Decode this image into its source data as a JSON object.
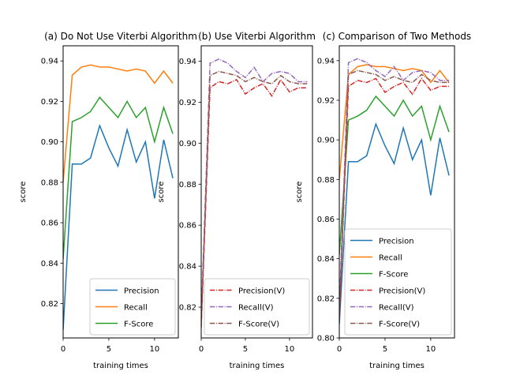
{
  "chart_data": [
    {
      "type": "line",
      "title": "(a) Do Not Use Viterbi Algorithm",
      "xlabel": "training times",
      "ylabel": "score",
      "xlim": [
        0,
        12.6
      ],
      "ylim": [
        0.803,
        0.9475
      ],
      "xticks": [
        0,
        5,
        10
      ],
      "yticks": [
        0.82,
        0.84,
        0.86,
        0.88,
        0.9,
        0.92,
        0.94
      ],
      "yticklabels": [
        "0.82",
        "0.84",
        "0.86",
        "0.88",
        "0.90",
        "0.92",
        "0.94"
      ],
      "legend": "lower-right",
      "x": [
        0,
        1,
        2,
        3,
        4,
        5,
        6,
        7,
        8,
        9,
        10,
        11,
        12
      ],
      "series": [
        {
          "name": "Precision",
          "color": "#1f77b4",
          "dash": "solid",
          "values": [
            0.807,
            0.889,
            0.889,
            0.892,
            0.908,
            0.897,
            0.888,
            0.906,
            0.89,
            0.9,
            0.872,
            0.901,
            0.882
          ]
        },
        {
          "name": "Recall",
          "color": "#ff7f0e",
          "dash": "solid",
          "values": [
            0.88,
            0.933,
            0.937,
            0.938,
            0.937,
            0.937,
            0.936,
            0.935,
            0.936,
            0.935,
            0.929,
            0.935,
            0.929
          ]
        },
        {
          "name": "F-Score",
          "color": "#2ca02c",
          "dash": "solid",
          "values": [
            0.842,
            0.91,
            0.912,
            0.915,
            0.922,
            0.917,
            0.912,
            0.92,
            0.912,
            0.917,
            0.9,
            0.917,
            0.904
          ]
        }
      ]
    },
    {
      "type": "line",
      "title": "(b) Use Viterbi Algorithm",
      "xlabel": "training times",
      "ylabel": "score",
      "xlim": [
        0,
        12.6
      ],
      "ylim": [
        0.805,
        0.9475
      ],
      "xticks": [
        0,
        5,
        10
      ],
      "yticks": [
        0.82,
        0.84,
        0.86,
        0.88,
        0.9,
        0.92,
        0.94
      ],
      "yticklabels": [
        "0.82",
        "0.84",
        "0.86",
        "0.88",
        "0.90",
        "0.92",
        "0.94"
      ],
      "legend": "lower-right",
      "x": [
        0,
        1,
        2,
        3,
        4,
        5,
        6,
        7,
        8,
        9,
        10,
        11,
        12
      ],
      "series": [
        {
          "name": "Precision(V)",
          "color": "#d62728",
          "dash": "dashdot",
          "values": [
            0.81,
            0.927,
            0.93,
            0.929,
            0.931,
            0.924,
            0.927,
            0.929,
            0.923,
            0.931,
            0.925,
            0.927,
            0.927
          ]
        },
        {
          "name": "Recall(V)",
          "color": "#9467bd",
          "dash": "dashdot",
          "values": [
            0.815,
            0.939,
            0.941,
            0.939,
            0.935,
            0.932,
            0.937,
            0.93,
            0.934,
            0.935,
            0.934,
            0.93,
            0.93
          ]
        },
        {
          "name": "F-Score(V)",
          "color": "#8c564b",
          "dash": "dashdot",
          "values": [
            0.812,
            0.933,
            0.935,
            0.934,
            0.933,
            0.93,
            0.932,
            0.93,
            0.929,
            0.933,
            0.93,
            0.929,
            0.929
          ]
        }
      ]
    },
    {
      "type": "line",
      "title": "(c) Comparison of Two Methods",
      "xlabel": "training times",
      "ylabel": "score",
      "xlim": [
        0,
        12.6
      ],
      "ylim": [
        0.8,
        0.9475
      ],
      "xticks": [
        0,
        5,
        10
      ],
      "yticks": [
        0.8,
        0.82,
        0.84,
        0.86,
        0.88,
        0.9,
        0.92,
        0.94
      ],
      "yticklabels": [
        "0.80",
        "0.82",
        "0.84",
        "0.86",
        "0.88",
        "0.90",
        "0.92",
        "0.94"
      ],
      "legend": "lower-right",
      "x": [
        0,
        1,
        2,
        3,
        4,
        5,
        6,
        7,
        8,
        9,
        10,
        11,
        12
      ],
      "series": [
        {
          "name": "Precision",
          "color": "#1f77b4",
          "dash": "solid",
          "values": [
            0.807,
            0.889,
            0.889,
            0.892,
            0.908,
            0.897,
            0.888,
            0.906,
            0.89,
            0.9,
            0.872,
            0.901,
            0.882
          ]
        },
        {
          "name": "Recall",
          "color": "#ff7f0e",
          "dash": "solid",
          "values": [
            0.88,
            0.933,
            0.937,
            0.938,
            0.937,
            0.937,
            0.936,
            0.935,
            0.936,
            0.935,
            0.929,
            0.935,
            0.929
          ]
        },
        {
          "name": "F-Score",
          "color": "#2ca02c",
          "dash": "solid",
          "values": [
            0.842,
            0.91,
            0.912,
            0.915,
            0.922,
            0.917,
            0.912,
            0.92,
            0.912,
            0.917,
            0.9,
            0.917,
            0.904
          ]
        },
        {
          "name": "Precision(V)",
          "color": "#d62728",
          "dash": "dashdot",
          "values": [
            0.81,
            0.927,
            0.93,
            0.929,
            0.931,
            0.924,
            0.927,
            0.929,
            0.923,
            0.931,
            0.925,
            0.927,
            0.927
          ]
        },
        {
          "name": "Recall(V)",
          "color": "#9467bd",
          "dash": "dashdot",
          "values": [
            0.815,
            0.939,
            0.941,
            0.939,
            0.935,
            0.932,
            0.937,
            0.93,
            0.934,
            0.935,
            0.934,
            0.93,
            0.93
          ]
        },
        {
          "name": "F-Score(V)",
          "color": "#8c564b",
          "dash": "dashdot",
          "values": [
            0.812,
            0.933,
            0.935,
            0.934,
            0.933,
            0.93,
            0.932,
            0.93,
            0.929,
            0.933,
            0.93,
            0.929,
            0.929
          ]
        }
      ]
    }
  ]
}
